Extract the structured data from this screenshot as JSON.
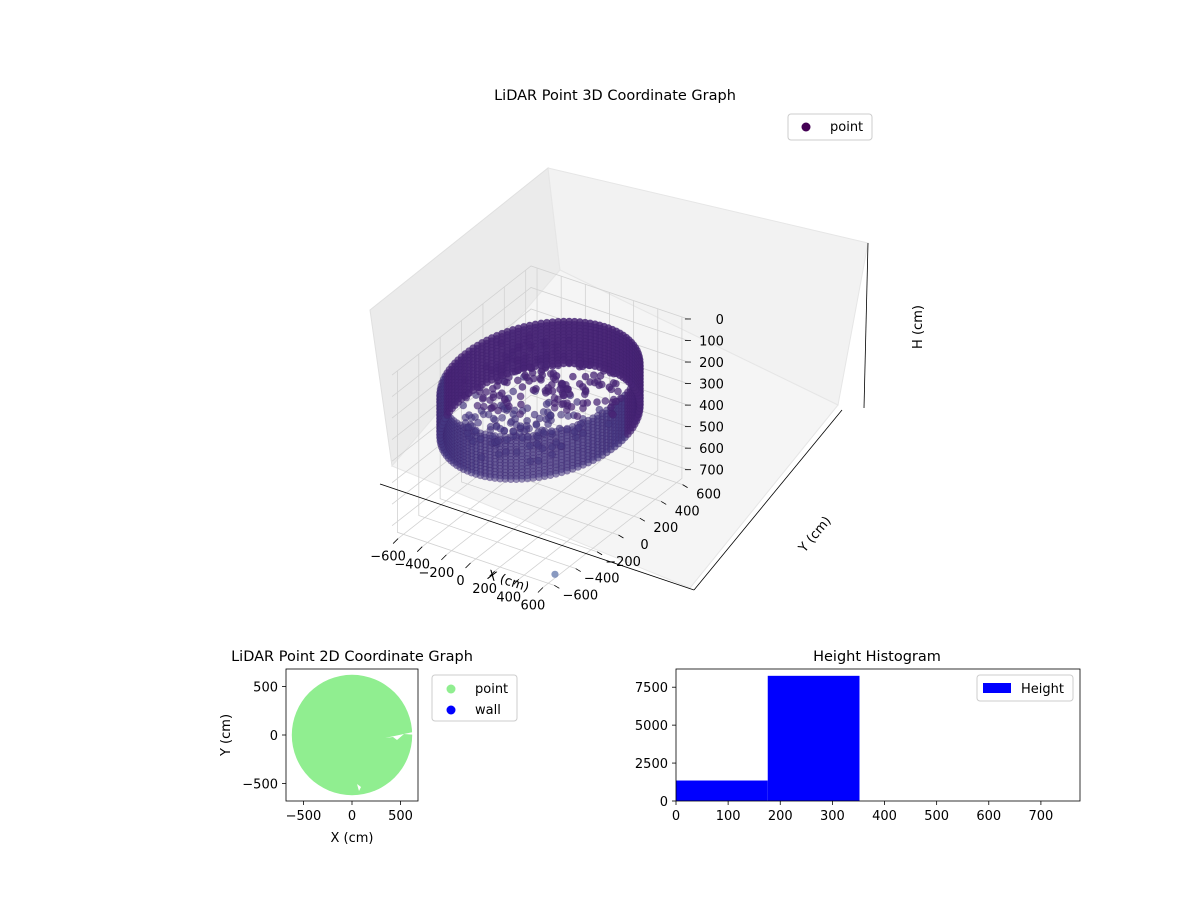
{
  "chart_data": [
    {
      "type": "scatter",
      "projection": "3d",
      "title": "LiDAR Point 3D Coordinate Graph",
      "xlabel": "X (cm)",
      "ylabel": "Y (cm)",
      "zlabel": "H (cm)",
      "xticks": [
        -600,
        -400,
        -200,
        0,
        200,
        400,
        600
      ],
      "yticks": [
        -600,
        -400,
        -200,
        0,
        200,
        400,
        600
      ],
      "zticks": [
        0,
        100,
        200,
        300,
        400,
        500,
        600,
        700
      ],
      "xlim": [
        -650,
        650
      ],
      "ylim": [
        -650,
        650
      ],
      "zlim": [
        0,
        750
      ],
      "z_inverted": true,
      "grid": true,
      "legend": {
        "placement": "top-right",
        "entries": [
          {
            "label": "point",
            "color": "#440154"
          }
        ]
      },
      "series": [
        {
          "name": "point",
          "description_of_shape": "ring of points at radius about 620 cm spanning heights about 150-350 cm, plus clustered interior points",
          "ring_radius": 620,
          "ring_height_range": [
            150,
            350
          ],
          "color_dark": "#440154",
          "color_light": "#6b7fb0"
        }
      ]
    },
    {
      "type": "scatter",
      "title": "LiDAR Point 2D Coordinate Graph",
      "xlabel": "X (cm)",
      "ylabel": "Y (cm)",
      "xticks": [
        -500,
        0,
        500
      ],
      "yticks": [
        -500,
        0,
        500
      ],
      "xlim": [
        -680,
        680
      ],
      "ylim": [
        -680,
        680
      ],
      "legend": {
        "placement": "outside-right",
        "entries": [
          {
            "label": "point",
            "color": "#90ee90"
          },
          {
            "label": "wall",
            "color": "#0000ff"
          }
        ]
      },
      "series": [
        {
          "name": "point",
          "color": "#90ee90",
          "disk_radius": 620
        },
        {
          "name": "wall",
          "color": "#0000ff",
          "values": []
        }
      ]
    },
    {
      "type": "bar",
      "subtype": "histogram",
      "title": "Height Histogram",
      "xticks": [
        0,
        100,
        200,
        300,
        400,
        500,
        600,
        700
      ],
      "yticks": [
        0,
        2500,
        5000,
        7500
      ],
      "xlim": [
        0,
        775
      ],
      "ylim": [
        0,
        8700
      ],
      "legend": {
        "placement": "top-right",
        "entries": [
          {
            "label": "Height",
            "color": "#0000ff"
          }
        ]
      },
      "bins": [
        {
          "x0": 0,
          "x1": 176,
          "count": 1350
        },
        {
          "x0": 176,
          "x1": 352,
          "count": 8250
        },
        {
          "x0": 352,
          "x1": 528,
          "count": 0
        },
        {
          "x0": 528,
          "x1": 704,
          "count": 0
        }
      ],
      "color": "#0000ff"
    }
  ]
}
